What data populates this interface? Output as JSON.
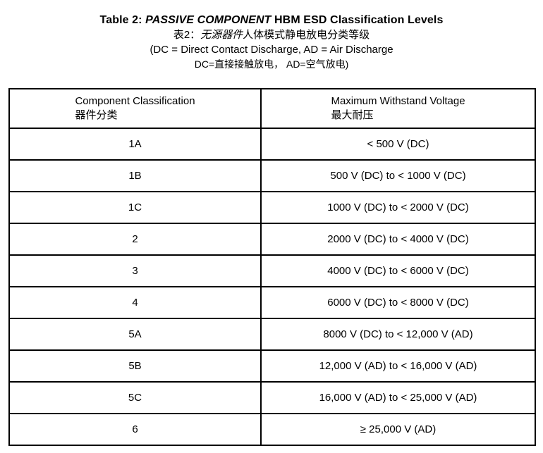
{
  "title": {
    "line1_prefix": "Table 2: ",
    "line1_italic": "PASSIVE COMPONENT",
    "line1_suffix": " HBM ESD Classification Levels",
    "line2_prefix": "表2：",
    "line2_italic": "无源器件",
    "line2_suffix": "人体模式静电放电分类等级",
    "line3": "(DC = Direct Contact Discharge, AD = Air Discharge",
    "line4": "DC=直接接触放电， AD=空气放电)"
  },
  "table": {
    "headers": {
      "col1_en": "Component Classification",
      "col1_zh": "器件分类",
      "col2_en": "Maximum Withstand Voltage",
      "col2_zh": "最大耐压"
    },
    "rows": [
      {
        "classification": "1A",
        "voltage": "< 500 V (DC)"
      },
      {
        "classification": "1B",
        "voltage": "500 V (DC) to < 1000 V (DC)"
      },
      {
        "classification": "1C",
        "voltage": "1000 V (DC) to < 2000 V (DC)"
      },
      {
        "classification": "2",
        "voltage": "2000 V (DC) to < 4000 V (DC)"
      },
      {
        "classification": "3",
        "voltage": "4000 V (DC) to < 6000 V (DC)"
      },
      {
        "classification": "4",
        "voltage": "6000 V (DC) to < 8000 V (DC)"
      },
      {
        "classification": "5A",
        "voltage": "8000 V (DC) to < 12,000 V (AD)"
      },
      {
        "classification": "5B",
        "voltage": "12,000 V (AD) to < 16,000 V (AD)"
      },
      {
        "classification": "5C",
        "voltage": "16,000 V (AD) to < 25,000 V (AD)"
      },
      {
        "classification": "6",
        "voltage": "≥ 25,000 V (AD)"
      }
    ]
  },
  "colors": {
    "text": "#000000",
    "background": "#ffffff",
    "border": "#000000"
  }
}
